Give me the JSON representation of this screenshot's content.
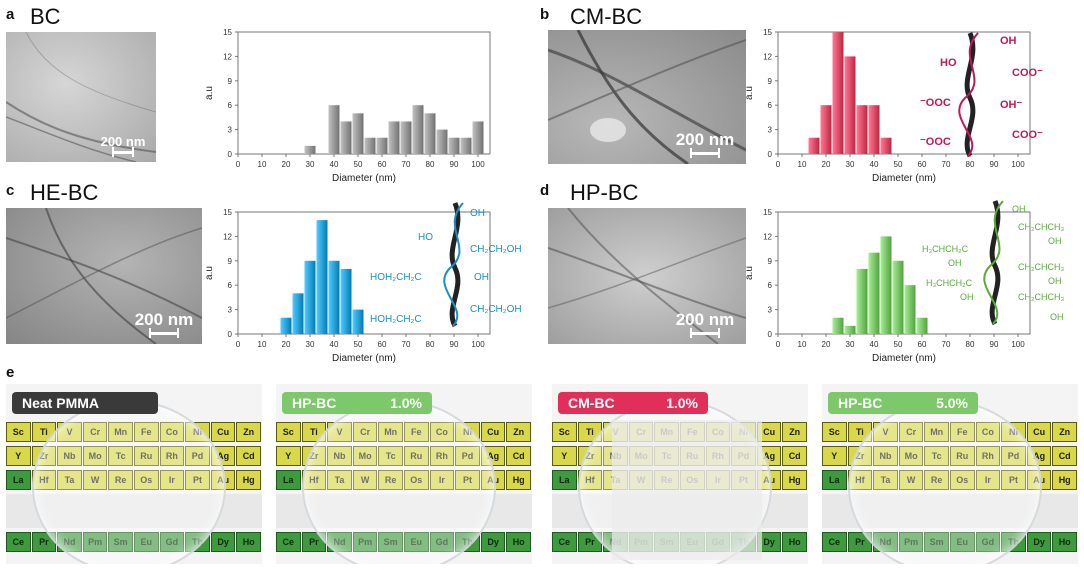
{
  "panels": {
    "a": {
      "letter": "a",
      "title": "BC",
      "scale": "200 nm"
    },
    "b": {
      "letter": "b",
      "title": "CM-BC",
      "scale": "200 nm"
    },
    "c": {
      "letter": "c",
      "title": "HE-BC",
      "scale": "200 nm"
    },
    "d": {
      "letter": "d",
      "title": "HP-BC",
      "scale": "200 nm"
    },
    "e": {
      "letter": "e"
    }
  },
  "chart_data": [
    {
      "type": "bar",
      "panel": "a",
      "xlabel": "Diameter (nm)",
      "ylabel": "a.u",
      "xlim": [
        0,
        105
      ],
      "ylim": [
        0,
        15
      ],
      "xticks": [
        0,
        10,
        20,
        30,
        40,
        50,
        60,
        70,
        80,
        90,
        100
      ],
      "yticks": [
        0,
        3,
        6,
        9,
        12,
        15
      ],
      "grid": false,
      "color": "#9a9a9a",
      "bins": [
        {
          "x": 30,
          "value": 1
        },
        {
          "x": 40,
          "value": 6
        },
        {
          "x": 45,
          "value": 4
        },
        {
          "x": 50,
          "value": 5
        },
        {
          "x": 55,
          "value": 2
        },
        {
          "x": 60,
          "value": 2
        },
        {
          "x": 65,
          "value": 4
        },
        {
          "x": 70,
          "value": 4
        },
        {
          "x": 75,
          "value": 6
        },
        {
          "x": 80,
          "value": 5
        },
        {
          "x": 85,
          "value": 3
        },
        {
          "x": 90,
          "value": 2
        },
        {
          "x": 95,
          "value": 2
        },
        {
          "x": 100,
          "value": 4
        }
      ]
    },
    {
      "type": "bar",
      "panel": "b",
      "xlabel": "Diameter (nm)",
      "ylabel": "a.u",
      "xlim": [
        0,
        105
      ],
      "ylim": [
        0,
        15
      ],
      "xticks": [
        0,
        10,
        20,
        30,
        40,
        50,
        60,
        70,
        80,
        90,
        100
      ],
      "yticks": [
        0,
        3,
        6,
        9,
        12,
        15
      ],
      "grid": false,
      "color": "#e0506a",
      "bins": [
        {
          "x": 15,
          "value": 2
        },
        {
          "x": 20,
          "value": 6
        },
        {
          "x": 25,
          "value": 15
        },
        {
          "x": 30,
          "value": 12
        },
        {
          "x": 35,
          "value": 6
        },
        {
          "x": 40,
          "value": 6
        },
        {
          "x": 45,
          "value": 2
        }
      ]
    },
    {
      "type": "bar",
      "panel": "c",
      "xlabel": "Diameter (nm)",
      "ylabel": "a.u",
      "xlim": [
        0,
        105
      ],
      "ylim": [
        0,
        15
      ],
      "xticks": [
        0,
        10,
        20,
        30,
        40,
        50,
        60,
        70,
        80,
        90,
        100
      ],
      "yticks": [
        0,
        3,
        6,
        9,
        12,
        15
      ],
      "grid": false,
      "color": "#2aa3d8",
      "bins": [
        {
          "x": 20,
          "value": 2
        },
        {
          "x": 25,
          "value": 5
        },
        {
          "x": 30,
          "value": 9
        },
        {
          "x": 35,
          "value": 14
        },
        {
          "x": 40,
          "value": 9
        },
        {
          "x": 45,
          "value": 8
        },
        {
          "x": 50,
          "value": 3
        }
      ]
    },
    {
      "type": "bar",
      "panel": "d",
      "xlabel": "Diameter (nm)",
      "ylabel": "a.u",
      "xlim": [
        0,
        105
      ],
      "ylim": [
        0,
        15
      ],
      "xticks": [
        0,
        10,
        20,
        30,
        40,
        50,
        60,
        70,
        80,
        90,
        100
      ],
      "yticks": [
        0,
        3,
        6,
        9,
        12,
        15
      ],
      "grid": false,
      "color": "#7cc86a",
      "bins": [
        {
          "x": 25,
          "value": 2
        },
        {
          "x": 30,
          "value": 1
        },
        {
          "x": 35,
          "value": 8
        },
        {
          "x": 40,
          "value": 10
        },
        {
          "x": 45,
          "value": 12
        },
        {
          "x": 50,
          "value": 9
        },
        {
          "x": 55,
          "value": 6
        },
        {
          "x": 60,
          "value": 2
        }
      ]
    }
  ],
  "structures": {
    "b": {
      "color": "#c2185b",
      "labels": [
        "OH",
        "HO",
        "COO⁻",
        "⁻OOC",
        "OH⁻",
        "⁻OOC",
        "COO⁻"
      ]
    },
    "c": {
      "color": "#1a8fc4",
      "labels": [
        "OH",
        "HO",
        "CH₂CH₂OH",
        "HOH₂CH₂C",
        "OH",
        "HOH₂CH₂C",
        "CH₂CH₂OH"
      ]
    },
    "d": {
      "color": "#5aaa3a",
      "labels": [
        "OH",
        "CH₂CHCH₃",
        "H₃CHCH₂C",
        "OH",
        "OH",
        "CH₂CHCH₃",
        "H₃CHCH₂C",
        "OH",
        "CH₂CHCH₃",
        "OH",
        "OH"
      ]
    }
  },
  "photos": [
    {
      "badge": "Neat PMMA",
      "pct": "",
      "badge_color": "#3a3a3a",
      "frosted": false
    },
    {
      "badge": "HP-BC",
      "pct": "1.0%",
      "badge_color": "#7cc86a",
      "frosted": false
    },
    {
      "badge": "CM-BC",
      "pct": "1.0%",
      "badge_color": "#e0305a",
      "frosted": true
    },
    {
      "badge": "HP-BC",
      "pct": "5.0%",
      "badge_color": "#7cc86a",
      "frosted": false
    }
  ],
  "periodic": {
    "row1": [
      "Sc",
      "Ti",
      "V",
      "Cr",
      "Mn",
      "Fe",
      "Co",
      "Ni",
      "Cu",
      "Zn"
    ],
    "row2": [
      "Y",
      "Zr",
      "Nb",
      "Mo",
      "Tc",
      "Ru",
      "Rh",
      "Pd",
      "Ag",
      "Cd"
    ],
    "row3": [
      "La",
      "Hf",
      "Ta",
      "W",
      "Re",
      "Os",
      "Ir",
      "Pt",
      "Au",
      "Hg"
    ],
    "row4": [
      "Ce",
      "Pr",
      "Nd",
      "Pm",
      "Sm",
      "Eu",
      "Gd",
      "Tb",
      "Dy",
      "Ho"
    ]
  }
}
